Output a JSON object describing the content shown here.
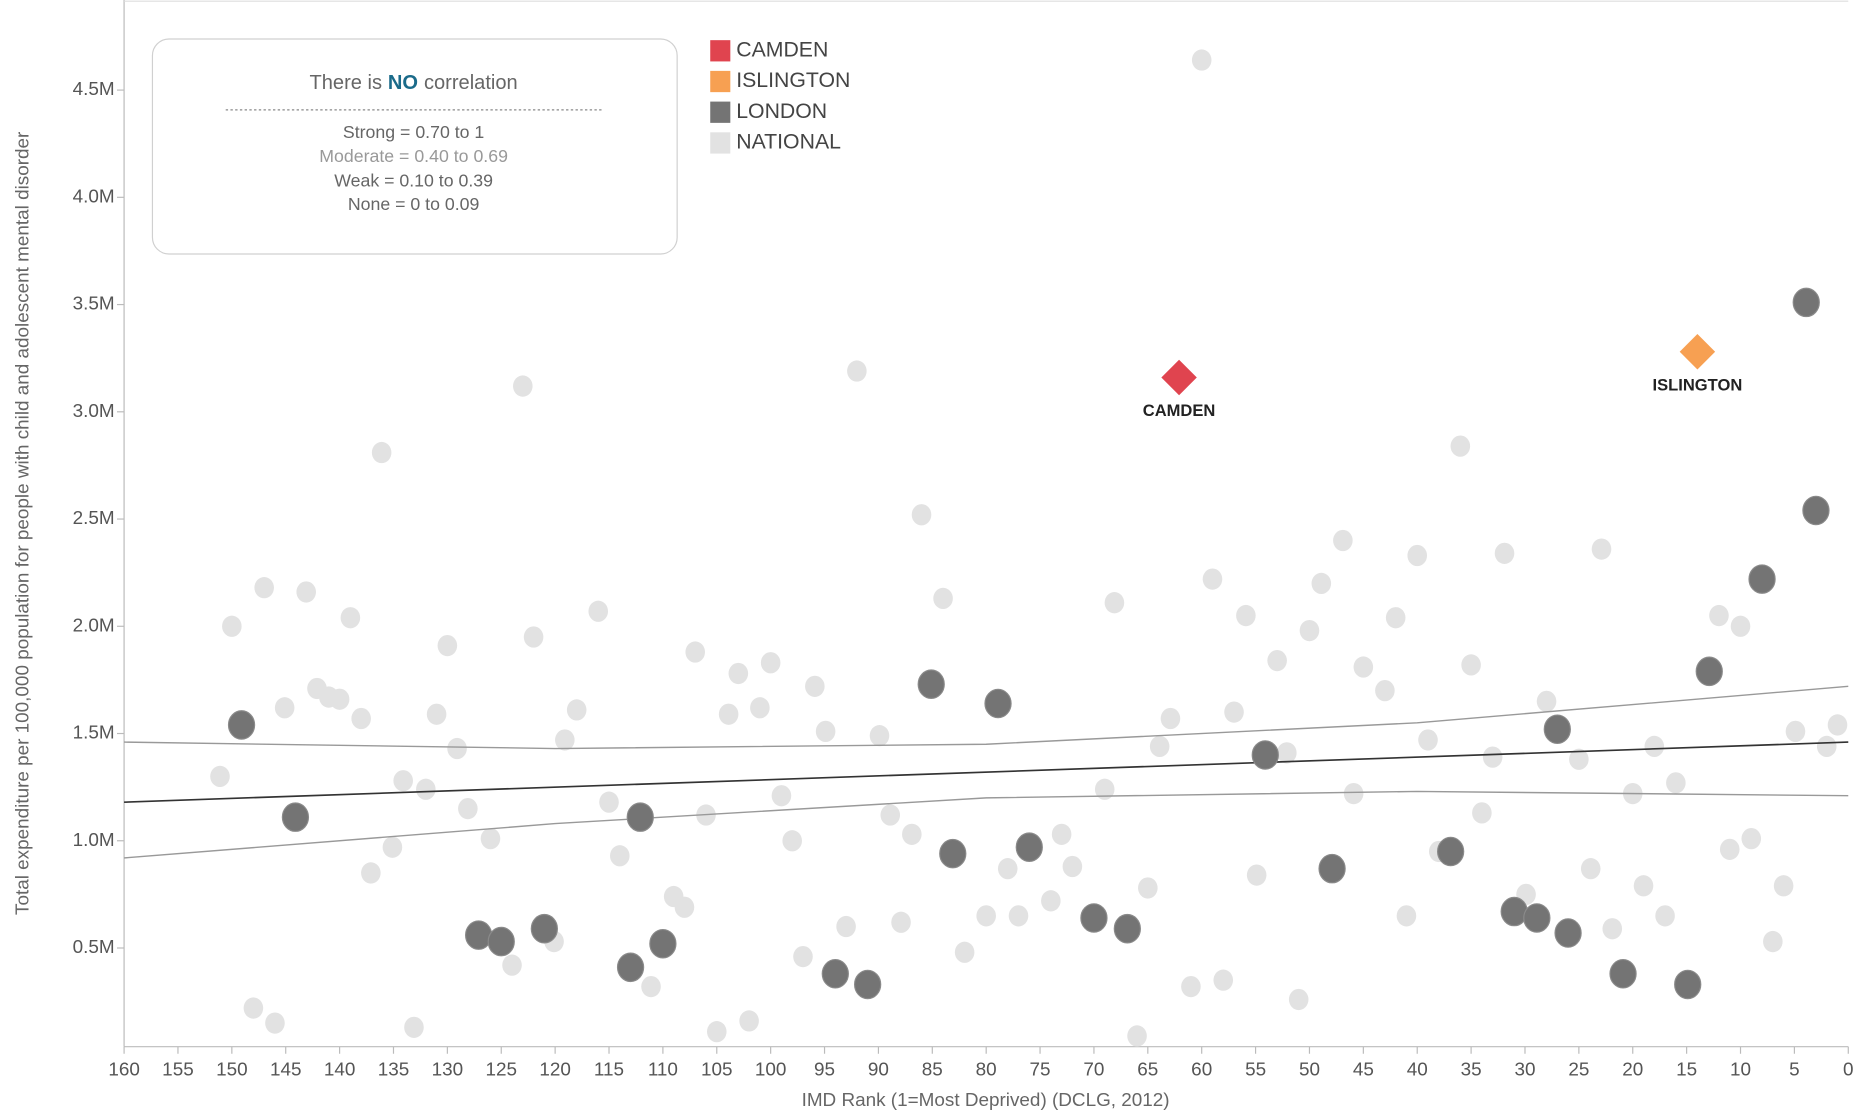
{
  "chart_data": {
    "type": "scatter",
    "x_label": "IMD Rank (1=Most Deprived) (DCLG, 2012)",
    "y_label": "Total expenditure per 100,000 population for people with child and adolescent mental disorder",
    "xlim": [
      160,
      0
    ],
    "ylim": [
      0.04,
      4.92
    ],
    "xticks": [
      160,
      155,
      150,
      145,
      140,
      135,
      130,
      125,
      120,
      115,
      110,
      105,
      100,
      95,
      90,
      85,
      80,
      75,
      70,
      65,
      60,
      55,
      50,
      45,
      40,
      35,
      30,
      25,
      20,
      15,
      10,
      5,
      0
    ],
    "yticks": [
      {
        "value": 0.5,
        "label": "0.5M"
      },
      {
        "value": 1.0,
        "label": "1.0M"
      },
      {
        "value": 1.5,
        "label": "1.5M"
      },
      {
        "value": 2.0,
        "label": "2.0M"
      },
      {
        "value": 2.5,
        "label": "2.5M"
      },
      {
        "value": 3.0,
        "label": "3.0M"
      },
      {
        "value": 3.5,
        "label": "3.5M"
      },
      {
        "value": 4.0,
        "label": "4.0M"
      },
      {
        "value": 4.5,
        "label": "4.5M"
      }
    ],
    "legend_position": "top",
    "series": [
      {
        "name": "CAMDEN",
        "color": "#e0444f",
        "shape": "diamond",
        "label_points": true,
        "x": [
          62.1
        ],
        "values": [
          3.16
        ]
      },
      {
        "name": "ISLINGTON",
        "color": "#f7a052",
        "shape": "diamond",
        "label_points": true,
        "x": [
          14.0
        ],
        "values": [
          3.28
        ]
      },
      {
        "name": "LONDON",
        "color": "#747474",
        "shape": "circle",
        "size": 12,
        "x": [
          149.1,
          144.1,
          127.1,
          125.0,
          121.0,
          113.0,
          112.1,
          110.0,
          94.0,
          91.0,
          85.1,
          83.1,
          78.9,
          76.0,
          70.0,
          66.9,
          54.1,
          47.9,
          36.9,
          31.0,
          28.9,
          27.0,
          26.0,
          20.9,
          14.9,
          12.9,
          8.0,
          3.9,
          3.0
        ],
        "values": [
          1.54,
          1.11,
          0.56,
          0.53,
          0.59,
          0.41,
          1.11,
          0.52,
          0.38,
          0.33,
          1.73,
          0.94,
          1.64,
          0.97,
          0.64,
          0.59,
          1.4,
          0.87,
          0.95,
          0.67,
          0.64,
          1.52,
          0.57,
          0.38,
          0.33,
          1.79,
          2.22,
          3.51,
          2.54
        ]
      },
      {
        "name": "NATIONAL",
        "color": "#e2e2e2",
        "shape": "circle",
        "size": 9,
        "x": [
          60.0,
          123.0,
          92.0,
          136.1,
          86.0,
          36.0,
          59.0,
          84.0,
          68.1,
          46.9,
          40.0,
          31.9,
          22.9,
          48.9,
          42.0,
          55.9,
          50.0,
          53.0,
          45.0,
          35.0,
          43.0,
          57.0,
          62.9,
          63.9,
          52.1,
          39.0,
          33.0,
          25.0,
          28.0,
          18.0,
          16.0,
          45.9,
          69.0,
          20.0,
          12.0,
          10.0,
          4.9,
          1.0,
          2.0,
          11.0,
          9.0,
          34.0,
          38.0,
          23.9,
          6.0,
          7.0,
          19.0,
          17.0,
          21.9,
          29.9,
          41.0,
          54.9,
          51.0,
          58.0,
          61.0,
          66.0,
          65.0,
          72.0,
          74.0,
          77.0,
          78.0,
          80.0,
          82.0,
          86.9,
          88.9,
          87.9,
          93.0,
          97.0,
          89.9,
          94.9,
          95.9,
          98.0,
          99.0,
          100.0,
          101.0,
          103.0,
          103.9,
          106.0,
          107.0,
          109.0,
          108.0,
          111.1,
          102.0,
          105.0,
          116.0,
          118.0,
          119.1,
          115.0,
          114.0,
          122.0,
          120.1,
          124.0,
          126.0,
          128.1,
          129.1,
          130.0,
          131.0,
          132.0,
          134.1,
          135.1,
          137.1,
          138.0,
          139.0,
          140.0,
          141.0,
          142.1,
          143.1,
          145.1,
          147.0,
          150.0,
          151.1,
          148.0,
          146.0,
          133.1,
          73.0
        ],
        "values": [
          4.64,
          3.12,
          3.19,
          2.81,
          2.52,
          2.84,
          2.22,
          2.13,
          2.11,
          2.4,
          2.33,
          2.34,
          2.36,
          2.2,
          2.04,
          2.05,
          1.98,
          1.84,
          1.81,
          1.82,
          1.7,
          1.6,
          1.57,
          1.44,
          1.41,
          1.47,
          1.39,
          1.38,
          1.65,
          1.44,
          1.27,
          1.22,
          1.24,
          1.22,
          2.05,
          2.0,
          1.51,
          1.54,
          1.44,
          0.96,
          1.01,
          1.13,
          0.95,
          0.87,
          0.79,
          0.53,
          0.79,
          0.65,
          0.59,
          0.75,
          0.65,
          0.84,
          0.26,
          0.35,
          0.32,
          0.09,
          0.78,
          0.88,
          0.72,
          0.65,
          0.87,
          0.65,
          0.48,
          1.03,
          1.12,
          0.62,
          0.6,
          0.46,
          1.49,
          1.51,
          1.72,
          1.0,
          1.21,
          1.83,
          1.62,
          1.78,
          1.59,
          1.12,
          1.88,
          0.74,
          0.69,
          0.32,
          0.16,
          0.11,
          2.07,
          1.61,
          1.47,
          1.18,
          0.93,
          1.95,
          0.53,
          0.42,
          1.01,
          1.15,
          1.43,
          1.91,
          1.59,
          1.24,
          1.28,
          0.97,
          0.85,
          1.57,
          2.04,
          1.66,
          1.67,
          1.71,
          2.16,
          1.62,
          2.18,
          2.0,
          1.3,
          0.22,
          0.15,
          0.13,
          1.03
        ]
      }
    ],
    "trend_lines": [
      {
        "color": "#333333",
        "x": [
          160,
          0
        ],
        "values": [
          1.18,
          1.46
        ]
      },
      {
        "color": "#999999",
        "x": [
          160,
          120,
          80,
          40,
          0
        ],
        "values": [
          1.46,
          1.43,
          1.45,
          1.55,
          1.72
        ]
      },
      {
        "color": "#999999",
        "x": [
          160,
          120,
          80,
          40,
          0
        ],
        "values": [
          0.92,
          1.08,
          1.2,
          1.23,
          1.21
        ]
      }
    ],
    "annotation": {
      "title": [
        "There is",
        "NO",
        "correlation"
      ],
      "lines": [
        "Strong = 0.70 to 1",
        "Moderate = 0.40 to 0.69",
        "Weak = 0.10 to 0.39",
        "None = 0 to 0.09"
      ]
    }
  }
}
